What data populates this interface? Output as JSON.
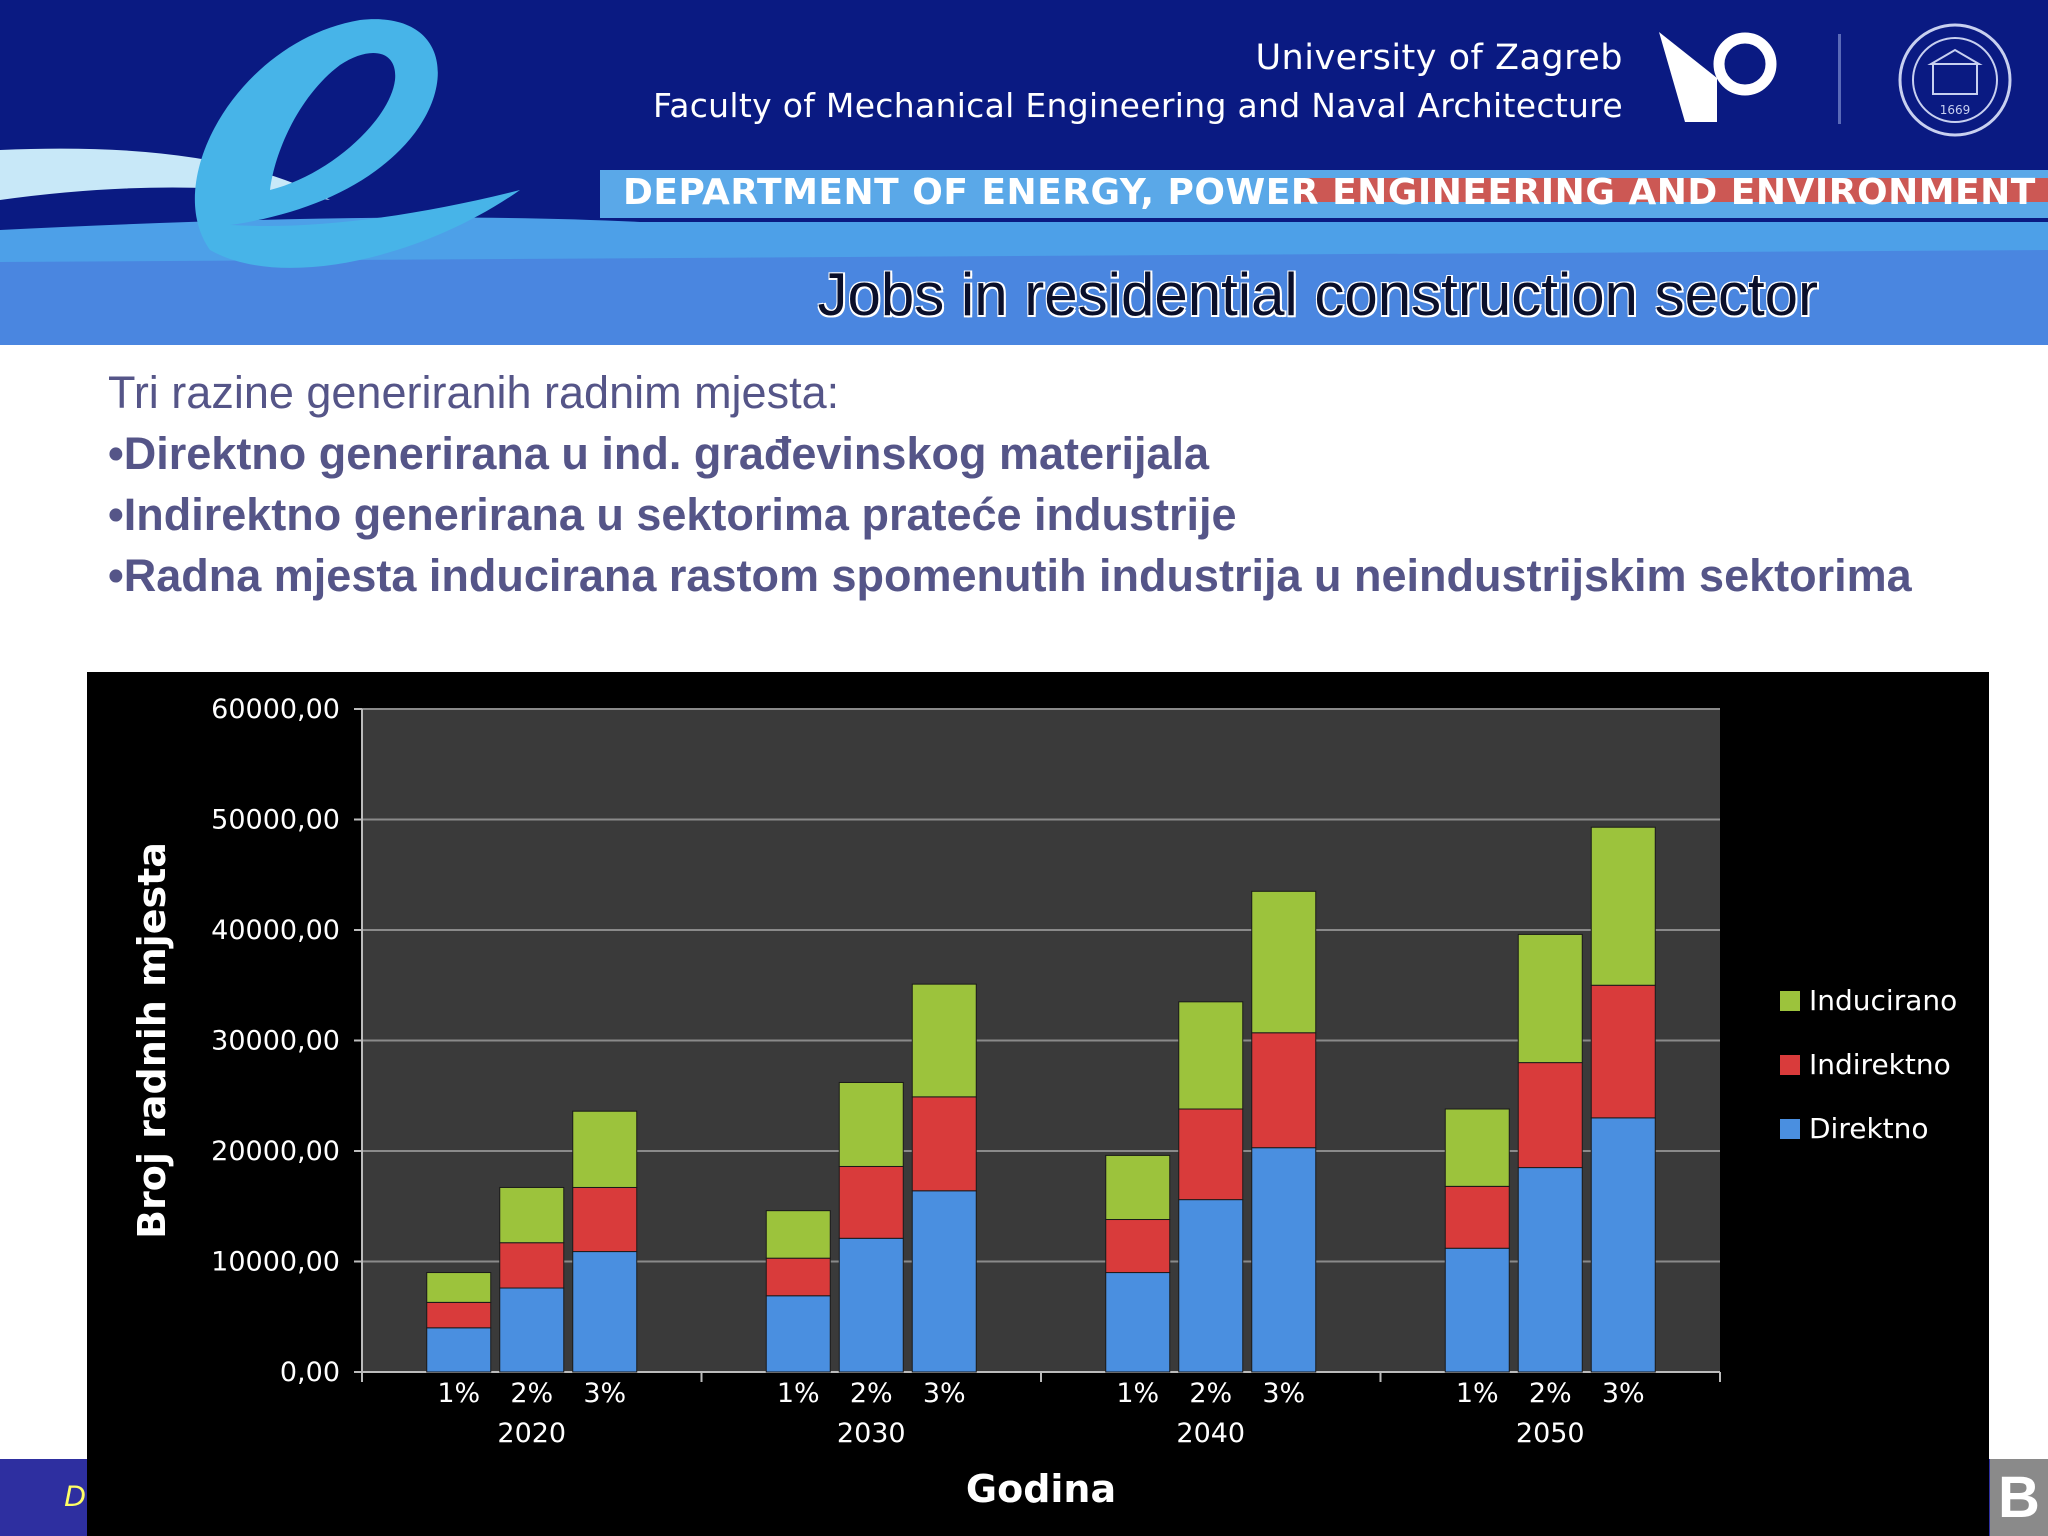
{
  "header": {
    "university": "University of Zagreb",
    "faculty": "Faculty of Mechanical Engineering and Naval Architecture",
    "department": "DEPARTMENT OF ENERGY, POWER ENGINEERING AND ENVIRONMENT",
    "slide_title": "Jobs in residential construction sector",
    "seal_year": "1669"
  },
  "content": {
    "intro": "Tri razine generiranih radnim mjesta:",
    "bullets": [
      "•Direktno generirana u ind. građevinskog materijala",
      "•Indirektno generirana u sektorima prateće industrije",
      "•Radna mjesta inducirana rastom spomenutih industrija u neindustrijskim sektorima"
    ]
  },
  "footer": {
    "text": "D",
    "badge": "B"
  },
  "colors": {
    "header_bg": "#0a1a82",
    "direktno": "#4a8fe0",
    "indirektno": "#d93b3b",
    "inducirano": "#9cc33c",
    "bullet_text": "#555588"
  },
  "chart_data": {
    "type": "bar",
    "stacked": true,
    "xlabel": "Godina",
    "ylabel": "Broj radnih mjesta",
    "ylim": [
      0,
      60000
    ],
    "yticks": [
      "0,00",
      "10000,00",
      "20000,00",
      "30000,00",
      "40000,00",
      "50000,00",
      "60000,00"
    ],
    "groups": [
      "2020",
      "2030",
      "2040",
      "2050"
    ],
    "subcategories": [
      "1%",
      "2%",
      "3%"
    ],
    "legend_position": "right",
    "series": [
      {
        "name": "Direktno",
        "color": "#4a8fe0",
        "values": [
          [
            4000,
            7600,
            10900
          ],
          [
            6900,
            12100,
            16400
          ],
          [
            9000,
            15600,
            20300
          ],
          [
            11200,
            18500,
            23000
          ]
        ]
      },
      {
        "name": "Indirektno",
        "color": "#d93b3b",
        "values": [
          [
            2300,
            4100,
            5800
          ],
          [
            3400,
            6500,
            8500
          ],
          [
            4800,
            8200,
            10400
          ],
          [
            5600,
            9500,
            12000
          ]
        ]
      },
      {
        "name": "Inducirano",
        "color": "#9cc33c",
        "values": [
          [
            2700,
            5000,
            6900
          ],
          [
            4300,
            7600,
            10200
          ],
          [
            5800,
            9700,
            12800
          ],
          [
            7000,
            11600,
            14300
          ]
        ]
      }
    ]
  }
}
